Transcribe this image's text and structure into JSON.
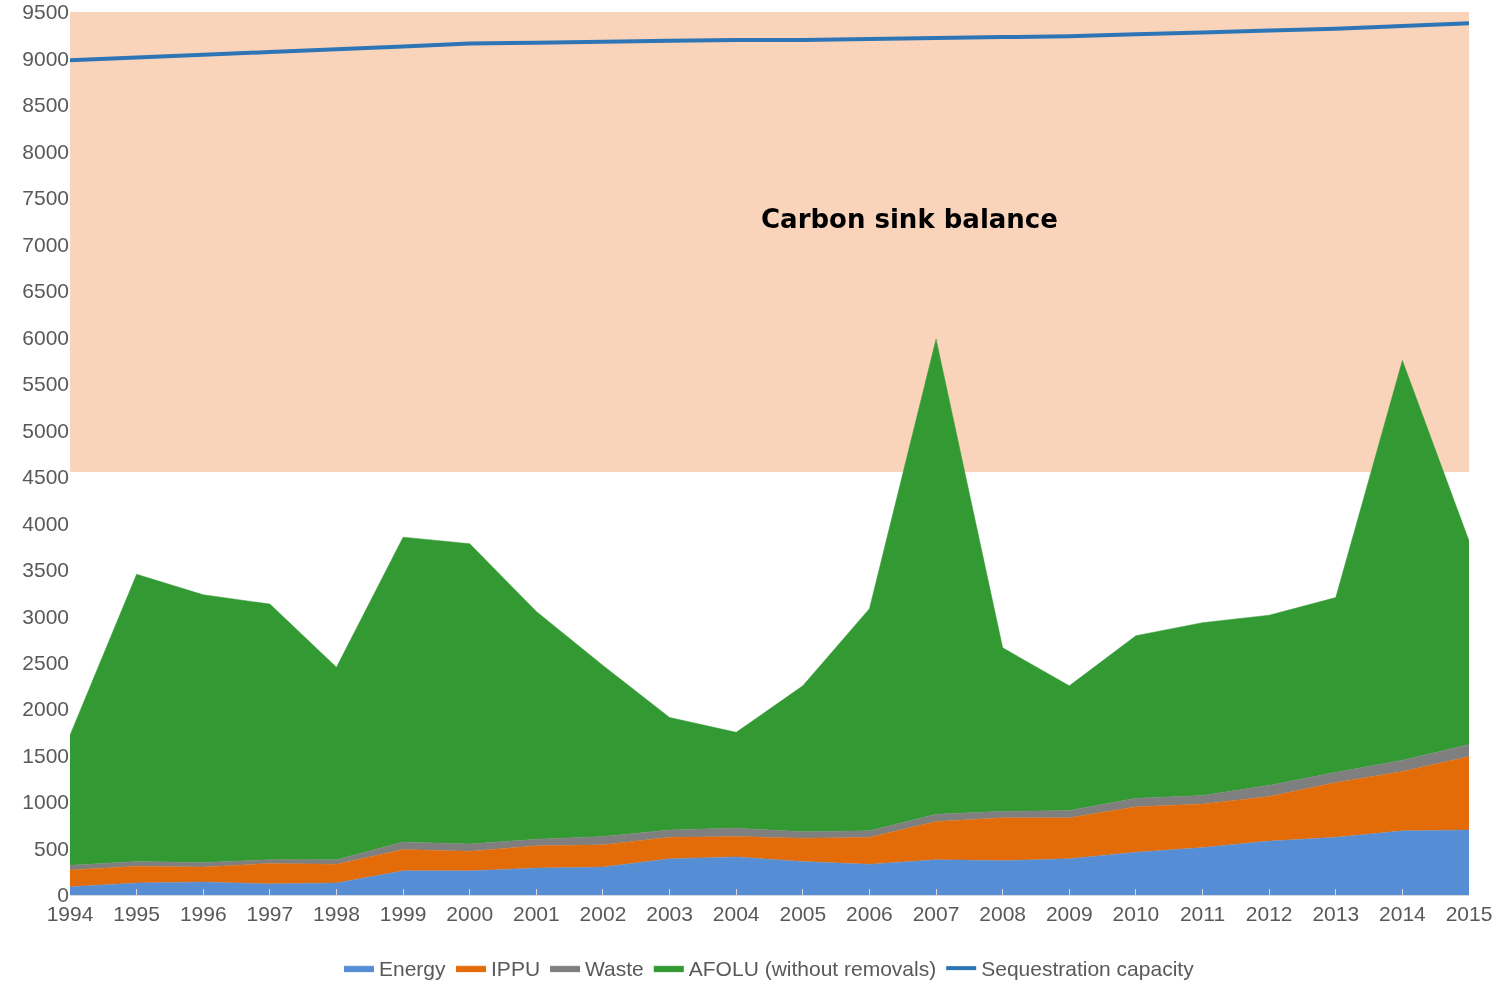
{
  "chart_data": {
    "type": "area",
    "stacked": true,
    "x": [
      1994,
      1995,
      1996,
      1997,
      1998,
      1999,
      2000,
      2001,
      2002,
      2003,
      2004,
      2005,
      2006,
      2007,
      2008,
      2009,
      2010,
      2011,
      2012,
      2013,
      2014,
      2015
    ],
    "series": [
      {
        "name": "Energy",
        "color": "#558ed5",
        "values": [
          90,
          130,
          140,
          120,
          130,
          260,
          260,
          290,
          300,
          390,
          410,
          360,
          330,
          380,
          370,
          390,
          460,
          510,
          580,
          620,
          690,
          700
        ]
      },
      {
        "name": "IPPU",
        "color": "#e36c09",
        "values": [
          180,
          180,
          160,
          220,
          200,
          230,
          210,
          240,
          240,
          230,
          220,
          250,
          290,
          410,
          460,
          440,
          490,
          470,
          480,
          590,
          640,
          790
        ]
      },
      {
        "name": "Waste",
        "color": "#7f7f7f",
        "values": [
          50,
          50,
          50,
          40,
          50,
          80,
          80,
          70,
          90,
          80,
          90,
          70,
          70,
          80,
          70,
          80,
          90,
          90,
          120,
          110,
          120,
          130
        ]
      },
      {
        "name": "AFOLU (without removals)",
        "color": "#339933",
        "values": [
          1400,
          3090,
          2880,
          2750,
          2070,
          3280,
          3230,
          2450,
          1840,
          1210,
          1030,
          1570,
          2390,
          5110,
          1760,
          1340,
          1750,
          1860,
          1830,
          1880,
          4300,
          2190
        ]
      },
      {
        "name": "Sequestration capacity",
        "type": "line",
        "color": "#2e75b6",
        "values": [
          8980,
          9010,
          9040,
          9070,
          9100,
          9130,
          9160,
          9170,
          9180,
          9190,
          9200,
          9200,
          9210,
          9220,
          9230,
          9240,
          9260,
          9280,
          9300,
          9320,
          9350,
          9380
        ]
      }
    ],
    "xlim": [
      1994,
      2015
    ],
    "xticks": [
      1994,
      1995,
      1996,
      1997,
      1998,
      1999,
      2000,
      2001,
      2002,
      2003,
      2004,
      2005,
      2006,
      2007,
      2008,
      2009,
      2010,
      2011,
      2012,
      2013,
      2014,
      2015
    ],
    "ylim": [
      0,
      9500
    ],
    "yticks": [
      0,
      500,
      1000,
      1500,
      2000,
      2500,
      3000,
      3500,
      4000,
      4500,
      5000,
      5500,
      6000,
      6500,
      7000,
      7500,
      8000,
      8500,
      9000,
      9500
    ],
    "bands": [
      {
        "axis": "y",
        "from": 4550,
        "to": 9500,
        "label": "Carbon sink balance",
        "color": "#f4b183"
      }
    ],
    "grid": false,
    "legend": "bottom"
  }
}
